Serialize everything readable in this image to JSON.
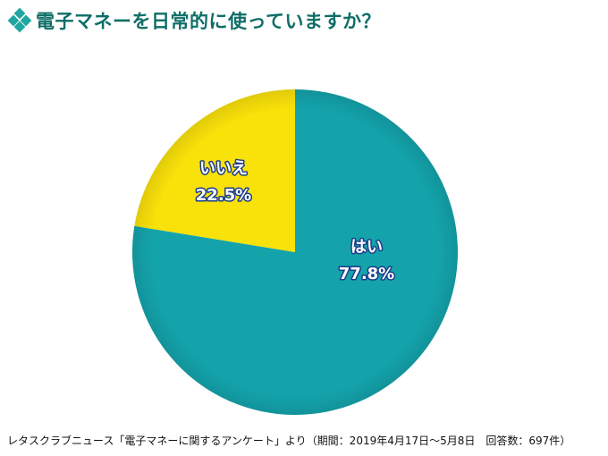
{
  "chart_data": {
    "type": "pie",
    "title": "電子マネーを日常的に使っていますか？",
    "slices": [
      {
        "label": "はい",
        "value": 77.8,
        "value_label": "77.8%",
        "color": "#14a3ab",
        "label_color": "#ffffff"
      },
      {
        "label": "いいえ",
        "value": 22.5,
        "value_label": "22.5%",
        "color": "#f9e10a",
        "label_color": "#ffffff"
      }
    ],
    "source": "レタスクラブニュース「電子マネーに関するアンケート」より（期間：2019年4月17日～5月8日　回答数：697件）"
  },
  "colors": {
    "title": "#0e6e67",
    "icon": "#1fa6a0",
    "label_outline": "#1a3d8a"
  },
  "icons": {
    "title_bullet": "diamond-cluster-icon"
  }
}
